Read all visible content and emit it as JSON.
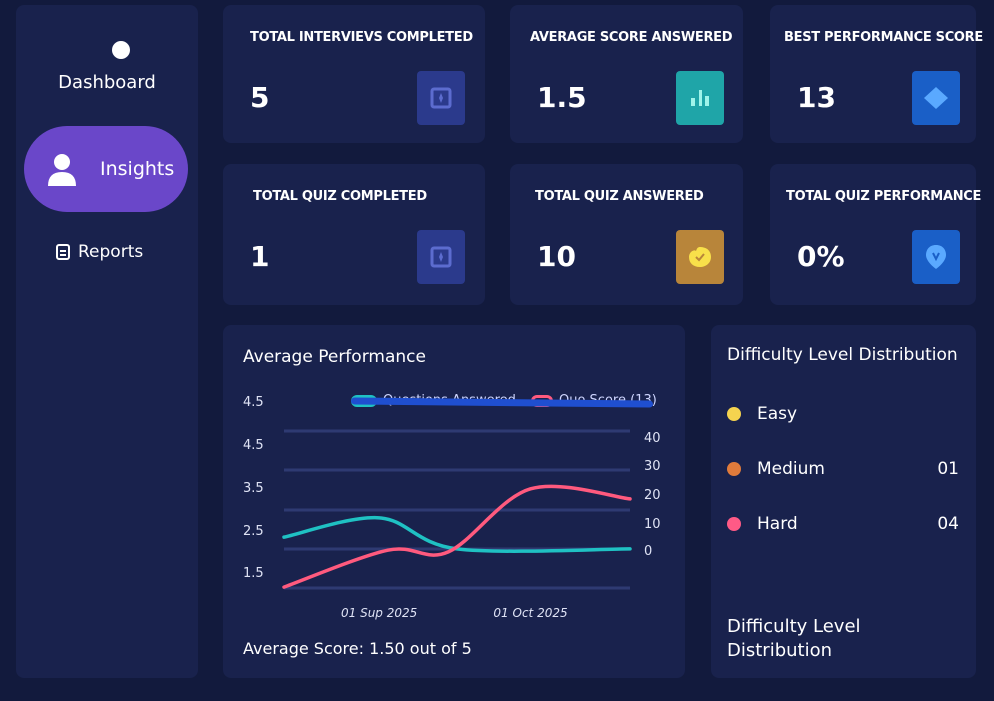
{
  "sidebar": {
    "items": [
      {
        "label": "Dashboard",
        "icon": "circle-icon"
      },
      {
        "label": "Insights",
        "icon": "user-icon",
        "active": true
      },
      {
        "label": "Reports",
        "icon": "document-icon"
      }
    ]
  },
  "stats": [
    {
      "label": "TOTAL INTERVIEVS COMPLETED",
      "value": "5",
      "icon": "card-icon",
      "color": "#2b3a8c"
    },
    {
      "label": "AVERAGE SCORE ANSWERED",
      "value": "1.5",
      "icon": "bar-chart-icon",
      "color": "#1fa5a8"
    },
    {
      "label": "BEST PERFORMANCE SCORE",
      "value": "13",
      "icon": "diamond-icon",
      "color": "#1a5fc7"
    },
    {
      "label": "TOTAL QUIZ COMPLETED",
      "value": "1",
      "icon": "card-icon",
      "color": "#2b3a8c"
    },
    {
      "label": "TOTAL QUIZ ANSWERED",
      "value": "10",
      "icon": "badge-check-icon",
      "color": "#b8853a"
    },
    {
      "label": "TOTAL QUIZ PERFORMANCE",
      "value": "0%",
      "icon": "location-pin-icon",
      "color": "#1a5fc7"
    }
  ],
  "performance": {
    "title": "Average Performance",
    "average_label": "Average Score:",
    "average_value": "1.50 out of 5",
    "chart_data": {
      "type": "line",
      "left_ticks": [
        "4.5",
        "4.5",
        "3.5",
        "2.5",
        "1.5"
      ],
      "right_ticks": [
        "40",
        "30",
        "20",
        "10",
        "0"
      ],
      "x_ticks": [
        {
          "x": 1.1,
          "label": "01 Sup 2025"
        },
        {
          "x": 2.85,
          "label": "01 Oct 2025"
        }
      ],
      "xlim": [
        0,
        4
      ],
      "ylim": [
        0.8,
        4.0
      ],
      "series": [
        {
          "name": "Questions Answered",
          "color": "#1fc1c3",
          "points": [
            [
              0,
              2.33
            ],
            [
              1.1,
              2.79
            ],
            [
              2,
              2.05
            ],
            [
              4,
              2.05
            ]
          ]
        },
        {
          "name": "Quo Score (13)",
          "color": "#ff5a7e",
          "points": [
            [
              0,
              1.14
            ],
            [
              1.2,
              2.02
            ],
            [
              1.9,
              1.98
            ],
            [
              2.85,
              3.48
            ],
            [
              4,
              3.24
            ]
          ]
        }
      ]
    }
  },
  "difficulty": {
    "title": "Difficulty Level Distribution",
    "items": [
      {
        "label": "Easy",
        "count": "",
        "color": "#f5d34f"
      },
      {
        "label": "Medium",
        "count": "01",
        "color": "#e07b3b"
      },
      {
        "label": "Hard",
        "count": "04",
        "color": "#ff5a86"
      }
    ],
    "footer": "Difficulty Level Distribution"
  }
}
